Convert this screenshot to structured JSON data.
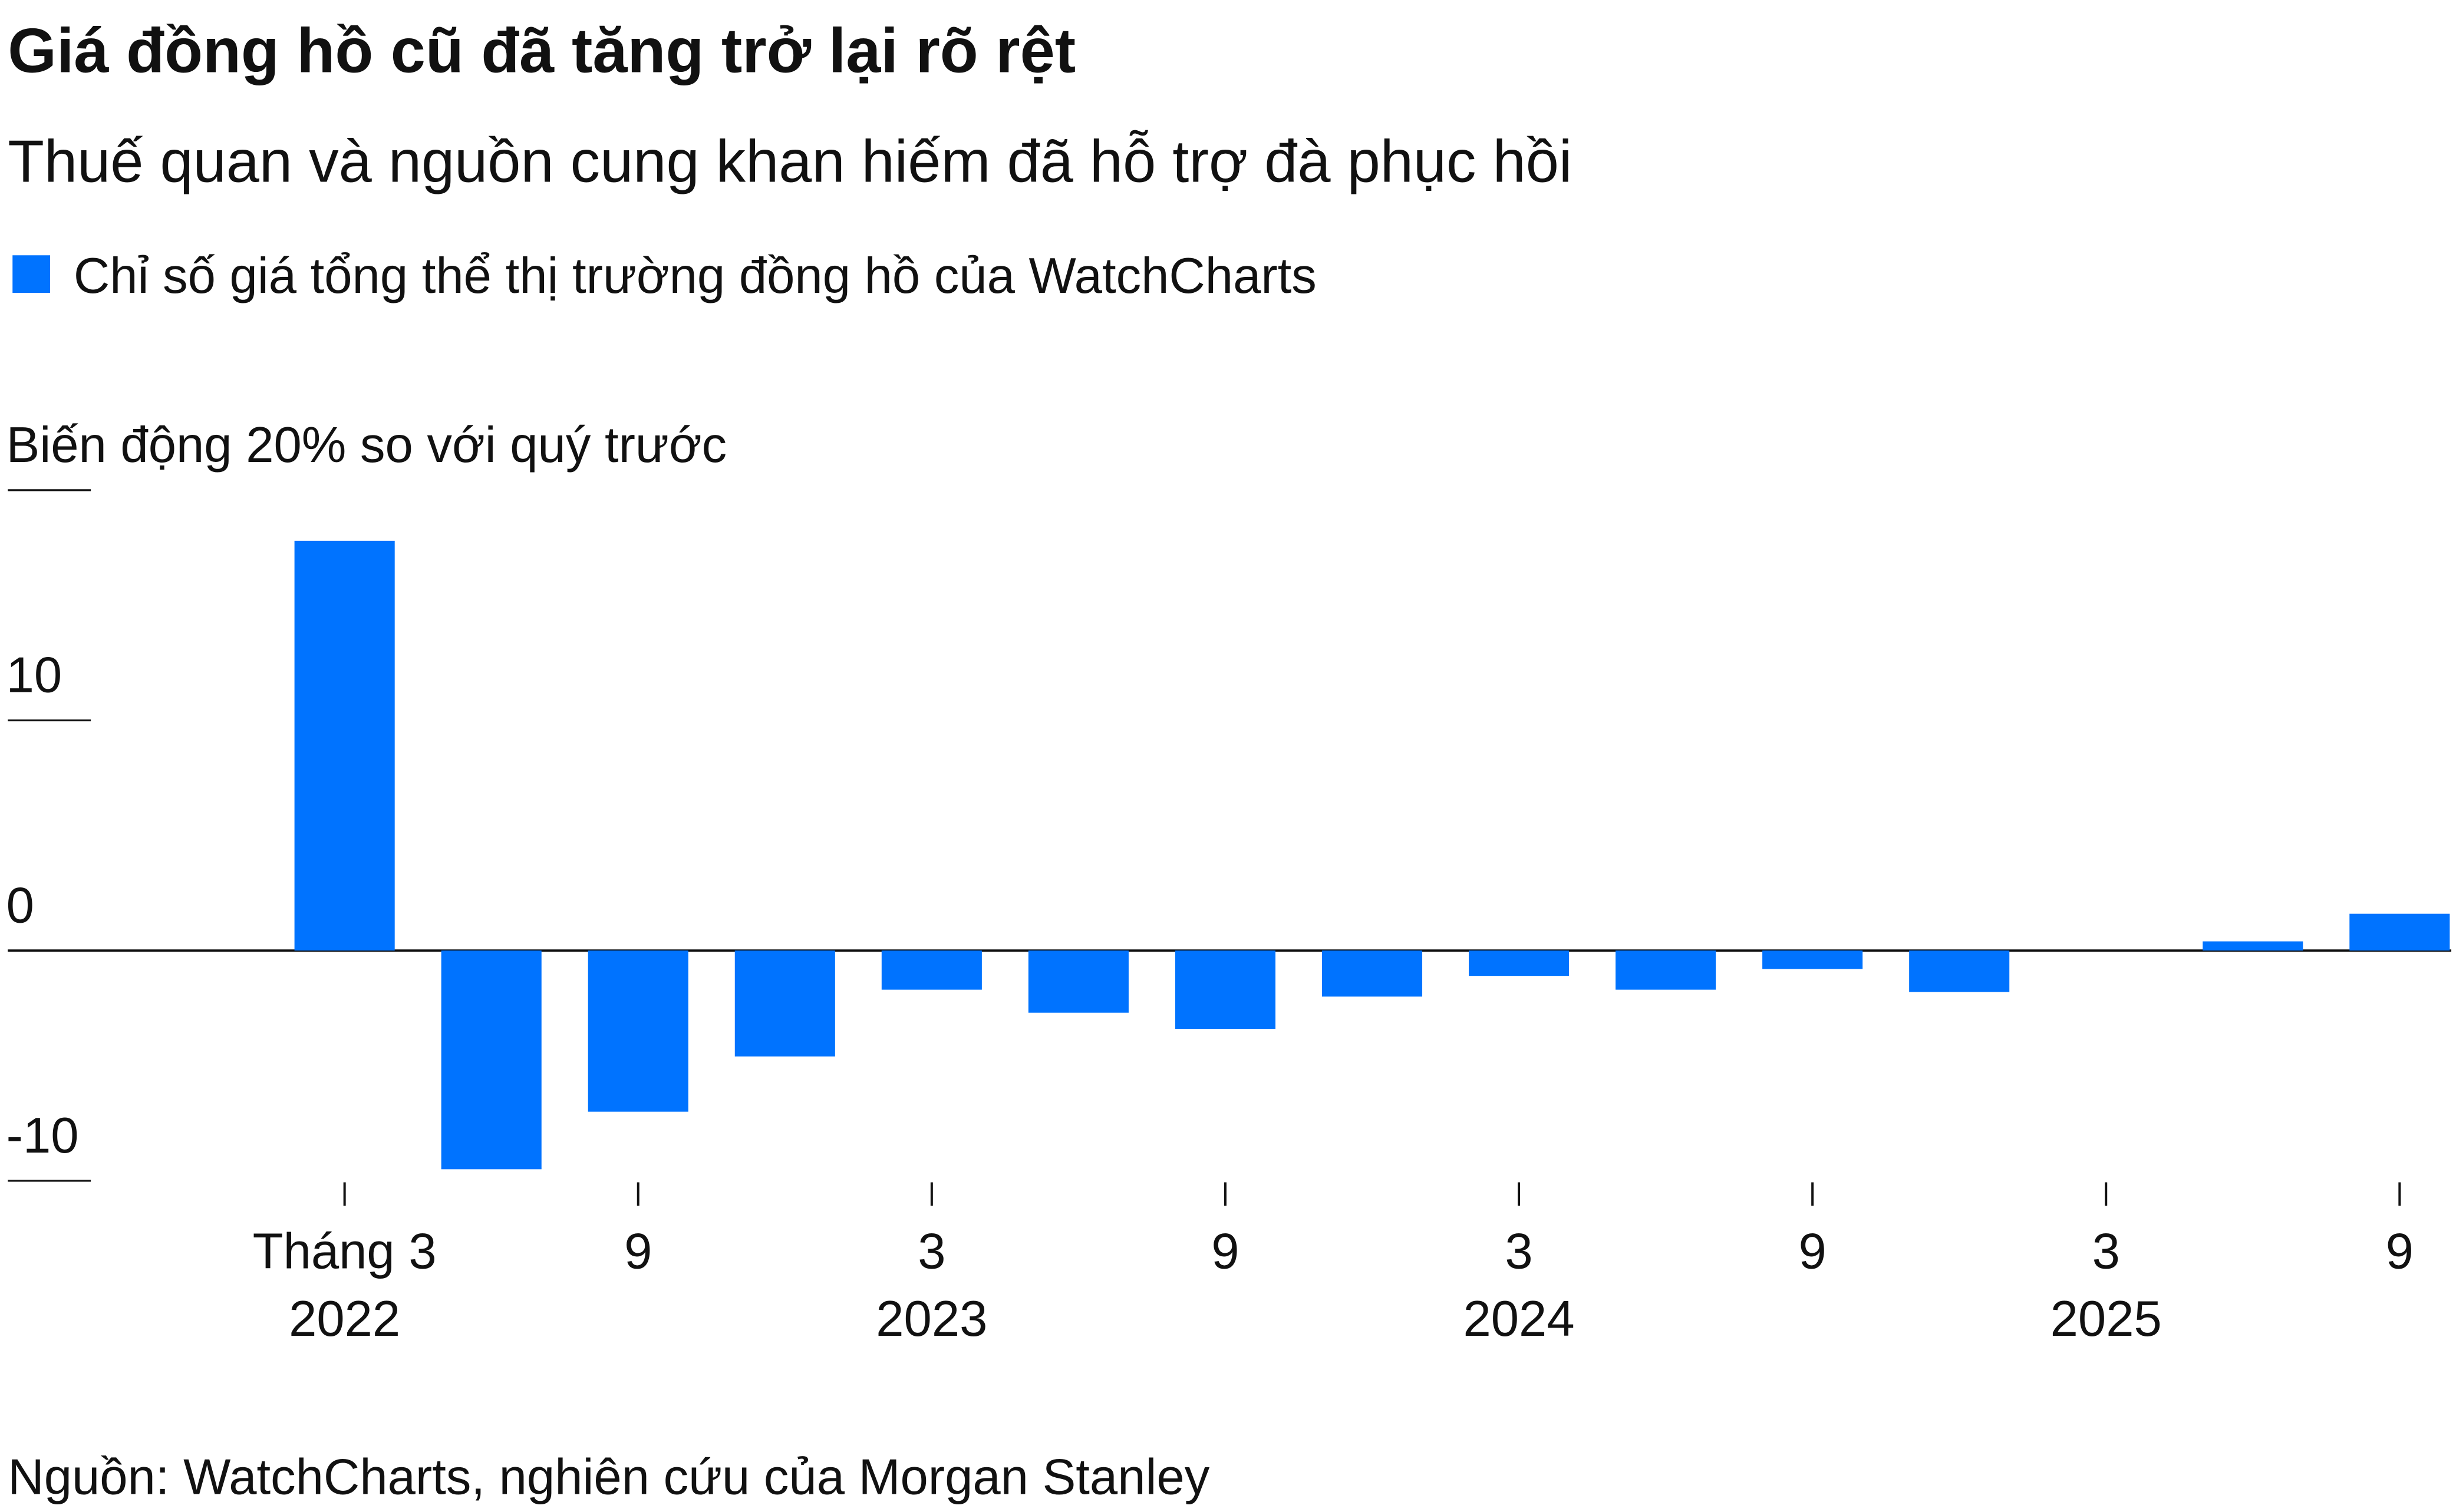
{
  "chart_data": {
    "type": "bar",
    "title": "Giá đồng hồ cũ đã tăng trở lại rõ rệt",
    "subtitle": "Thuế quan và nguồn cung khan hiếm đã hỗ trợ đà phục hồi",
    "source": "Nguồn: WatchCharts, nghiên cứu của Morgan Stanley",
    "categories": [
      "Tháng 3",
      null,
      "9",
      null,
      "3",
      null,
      "9",
      null,
      "3",
      null,
      "9",
      null,
      "3",
      null,
      "9"
    ],
    "years": [
      "2022",
      null,
      null,
      null,
      "2023",
      null,
      null,
      null,
      "2024",
      null,
      null,
      null,
      "2025",
      null,
      null
    ],
    "series": [
      {
        "name": "Chỉ số giá tổng thể thị trường đồng hồ của WatchCharts",
        "color": "#0073ff",
        "values": [
          17.8,
          -9.5,
          -7.0,
          -4.6,
          -1.7,
          -2.7,
          -3.4,
          -2.0,
          -1.1,
          -1.7,
          -0.8,
          -1.8,
          0,
          0.4,
          1.6
        ]
      }
    ],
    "ylim": [
      -10,
      20
    ],
    "yticks": [
      -10,
      0,
      10,
      {
        "value": 20,
        "label": "Biến động 20% so với quý trước"
      }
    ]
  }
}
